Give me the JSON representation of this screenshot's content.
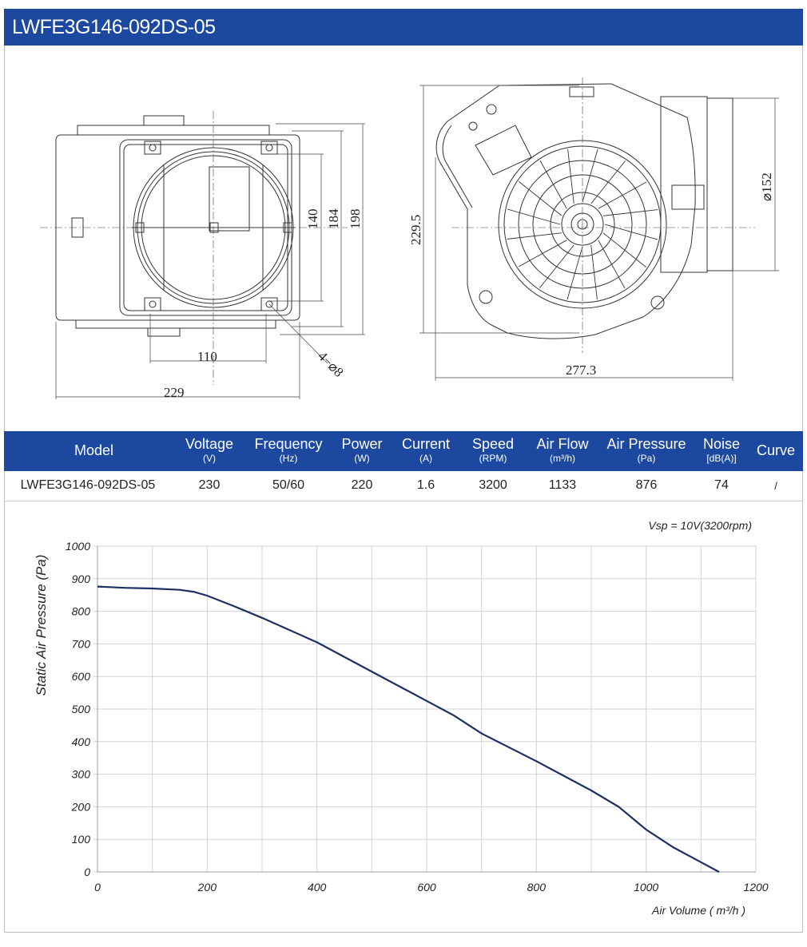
{
  "title": "LWFE3G146-092DS-05",
  "drawing_left": {
    "dims": {
      "d110": "110",
      "d229": "229",
      "d140": "140",
      "d184": "184",
      "d198": "198",
      "holes": "4−⌀8"
    }
  },
  "drawing_right": {
    "dims": {
      "d229_5": "229.5",
      "d277_3": "277.3",
      "d152": "⌀152"
    }
  },
  "spec_table": {
    "headers": [
      {
        "label": "Model",
        "unit": ""
      },
      {
        "label": "Voltage",
        "unit": "(V)"
      },
      {
        "label": "Frequency",
        "unit": "(Hz)"
      },
      {
        "label": "Power",
        "unit": "(W)"
      },
      {
        "label": "Current",
        "unit": "(A)"
      },
      {
        "label": "Speed",
        "unit": "(RPM)"
      },
      {
        "label": "Air Flow",
        "unit": "(m³/h)"
      },
      {
        "label": "Air Pressure",
        "unit": "(Pa)"
      },
      {
        "label": "Noise",
        "unit": "[dB(A)]"
      },
      {
        "label": "Curve",
        "unit": ""
      }
    ],
    "row": [
      "LWFE3G146-092DS-05",
      "230",
      "50/60",
      "220",
      "1.6",
      "3200",
      "1133",
      "876",
      "74",
      "/"
    ]
  },
  "chart_data": {
    "type": "line",
    "annotation": "Vsp = 10V(3200rpm)",
    "xlabel": "Air Volume ( m³/h )",
    "ylabel": "Static Air Pressure  (Pa)",
    "xlim": [
      0,
      1200
    ],
    "ylim": [
      0,
      1000
    ],
    "xticks": [
      0,
      200,
      400,
      600,
      800,
      1000,
      1200
    ],
    "yticks": [
      0,
      100,
      200,
      300,
      400,
      500,
      600,
      700,
      800,
      900,
      1000
    ],
    "grid": true,
    "line_color": "#1b2f63",
    "series": [
      {
        "x": [
          0,
          50,
          100,
          150,
          175,
          200,
          250,
          300,
          400,
          500,
          600,
          650,
          700,
          800,
          900,
          950,
          1000,
          1050,
          1100,
          1133
        ],
        "values": [
          876,
          872,
          870,
          866,
          860,
          848,
          815,
          780,
          705,
          615,
          525,
          480,
          425,
          340,
          250,
          200,
          130,
          75,
          30,
          0
        ]
      }
    ]
  },
  "colors": {
    "brand": "#1d48a0",
    "curve": "#1b2f63",
    "grid": "#cfd3d9"
  }
}
